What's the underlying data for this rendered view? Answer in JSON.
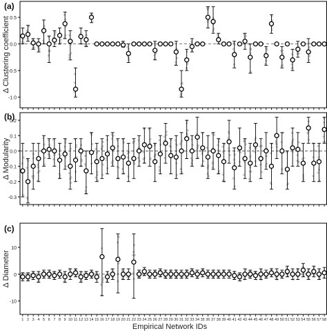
{
  "figure": {
    "xlabel": "Empirical Network IDs",
    "x_ticks": [
      "1",
      "2",
      "3",
      "4",
      "5",
      "6",
      "7",
      "8",
      "9",
      "10",
      "11",
      "12",
      "13",
      "14",
      "15",
      "16",
      "17",
      "18",
      "19",
      "20",
      "21",
      "22",
      "23",
      "24",
      "25",
      "26",
      "27",
      "28",
      "29",
      "30",
      "31",
      "32",
      "33",
      "34",
      "35",
      "36",
      "37",
      "38",
      "39",
      "40",
      "41",
      "42",
      "43",
      "44",
      "45",
      "46",
      "47",
      "48",
      "49",
      "50",
      "51",
      "52",
      "53",
      "54",
      "55",
      "56",
      "57",
      "58"
    ]
  },
  "chart_data": [
    {
      "type": "scatter",
      "panel_label": "(a)",
      "ylabel": "Δ Clustering coefficient",
      "ylim": [
        -1.2,
        0.8
      ],
      "yticks": [
        0.5,
        0.0,
        -0.5,
        -1.0
      ],
      "ytick_labels": [
        "0.5",
        "0.0",
        "-0.5",
        "-1.0"
      ],
      "mean": [
        0.15,
        0.18,
        0.02,
        0.0,
        0.25,
        0.0,
        0.07,
        0.16,
        0.38,
        0.05,
        -0.85,
        0.14,
        0.08,
        0.5,
        0.0,
        0.0,
        0.0,
        0.0,
        0.0,
        -0.02,
        -0.18,
        0.0,
        0.0,
        0.0,
        0.0,
        -0.12,
        0.0,
        0.0,
        0.0,
        -0.15,
        -0.85,
        -0.3,
        -0.05,
        0.0,
        0.0,
        0.5,
        0.42,
        0.08,
        0.0,
        0.0,
        -0.2,
        0.0,
        0.05,
        -0.25,
        0.0,
        0.0,
        -0.22,
        0.38,
        0.0,
        -0.25,
        0.0,
        -0.3,
        -0.1,
        0.0,
        -0.15,
        0.0,
        0.0,
        0.0
      ],
      "lower": [
        0.0,
        0.05,
        -0.1,
        -0.15,
        0.0,
        -0.35,
        -0.05,
        0.0,
        0.1,
        -0.3,
        -1.0,
        0.0,
        -0.05,
        0.4,
        0.0,
        0.0,
        0.0,
        0.0,
        0.0,
        -0.06,
        -0.35,
        0.0,
        0.0,
        0.0,
        0.0,
        -0.3,
        0.0,
        0.0,
        0.0,
        -0.4,
        -1.0,
        -0.5,
        -0.15,
        0.0,
        0.0,
        0.3,
        0.2,
        0.0,
        0.0,
        0.0,
        -0.45,
        0.0,
        -0.1,
        -0.55,
        0.0,
        0.0,
        -0.4,
        0.2,
        0.0,
        -0.45,
        0.0,
        -0.5,
        -0.25,
        0.0,
        -0.35,
        0.0,
        0.0,
        0.0
      ],
      "upper": [
        0.3,
        0.35,
        0.1,
        0.1,
        0.45,
        0.15,
        0.25,
        0.3,
        0.6,
        0.25,
        -0.45,
        0.3,
        0.25,
        0.58,
        0.0,
        0.0,
        0.0,
        0.0,
        0.0,
        0.05,
        0.0,
        0.0,
        0.0,
        0.0,
        0.0,
        0.05,
        0.0,
        0.0,
        0.0,
        0.05,
        -0.5,
        -0.1,
        0.1,
        0.0,
        0.0,
        0.7,
        0.7,
        0.2,
        0.0,
        0.0,
        0.05,
        0.0,
        0.2,
        0.0,
        0.0,
        0.0,
        -0.05,
        0.55,
        0.0,
        -0.05,
        0.0,
        -0.1,
        0.05,
        0.0,
        0.1,
        0.0,
        0.0,
        0.0
      ]
    },
    {
      "type": "scatter",
      "panel_label": "(b)",
      "ylabel": "Δ Modularity",
      "ylim": [
        -0.35,
        0.25
      ],
      "yticks": [
        0.2,
        0.1,
        0.0,
        -0.1,
        -0.2,
        -0.3
      ],
      "ytick_labels": [
        "0.2",
        "0.1",
        "0.0",
        "-0.1",
        "-0.2",
        "-0.3"
      ],
      "mean": [
        -0.13,
        -0.2,
        -0.1,
        -0.05,
        0.0,
        0.01,
        0.0,
        -0.06,
        -0.02,
        -0.1,
        -0.06,
        0.0,
        -0.13,
        -0.01,
        -0.07,
        -0.05,
        -0.02,
        0.02,
        -0.05,
        -0.04,
        -0.08,
        -0.05,
        0.0,
        0.04,
        0.03,
        -0.07,
        -0.02,
        0.05,
        -0.03,
        -0.04,
        0.0,
        0.08,
        0.0,
        0.09,
        0.02,
        -0.04,
        0.0,
        -0.03,
        -0.07,
        0.06,
        -0.11,
        0.02,
        -0.05,
        -0.08,
        0.04,
        -0.05,
        0.0,
        -0.1,
        0.1,
        0.0,
        -0.12,
        0.02,
        0.01,
        -0.08,
        0.15,
        -0.08,
        -0.07,
        0.14
      ],
      "lower": [
        -0.3,
        -0.34,
        -0.25,
        -0.2,
        -0.1,
        -0.05,
        -0.1,
        -0.18,
        -0.12,
        -0.25,
        -0.2,
        -0.1,
        -0.28,
        -0.15,
        -0.2,
        -0.18,
        -0.15,
        -0.1,
        -0.18,
        -0.15,
        -0.2,
        -0.18,
        -0.1,
        -0.08,
        -0.1,
        -0.2,
        -0.15,
        -0.08,
        -0.15,
        -0.18,
        -0.15,
        -0.05,
        -0.1,
        -0.05,
        -0.1,
        -0.18,
        -0.12,
        -0.15,
        -0.2,
        -0.08,
        -0.25,
        -0.1,
        -0.18,
        -0.2,
        -0.1,
        -0.18,
        -0.12,
        -0.25,
        -0.05,
        -0.15,
        -0.25,
        -0.1,
        -0.1,
        -0.2,
        0.05,
        -0.2,
        -0.2,
        0.05
      ],
      "upper": [
        0.05,
        -0.05,
        0.05,
        0.05,
        0.1,
        0.08,
        0.08,
        0.05,
        0.08,
        0.05,
        0.08,
        0.08,
        0.0,
        0.12,
        0.05,
        0.08,
        0.1,
        0.12,
        0.08,
        0.08,
        0.05,
        0.08,
        0.1,
        0.15,
        0.15,
        0.05,
        0.1,
        0.18,
        0.08,
        0.1,
        0.12,
        0.2,
        0.1,
        0.22,
        0.12,
        0.1,
        0.12,
        0.08,
        0.05,
        0.2,
        0.02,
        0.15,
        0.08,
        0.05,
        0.18,
        0.08,
        0.12,
        0.05,
        0.22,
        0.12,
        0.0,
        0.15,
        0.12,
        0.05,
        0.22,
        0.05,
        0.05,
        0.22
      ]
    },
    {
      "type": "scatter",
      "panel_label": "(c)",
      "ylabel": "Δ Diameter",
      "ylim": [
        -15,
        19
      ],
      "yticks": [
        10,
        0,
        -10
      ],
      "ytick_labels": [
        "10",
        "0",
        "-10"
      ],
      "mean": [
        -1,
        -1,
        -0.5,
        -1,
        0,
        0,
        -0.5,
        0,
        -1,
        0,
        0.5,
        -1,
        -0.5,
        0,
        -1,
        6.5,
        -1,
        0,
        5.5,
        0,
        0,
        4.5,
        0,
        1,
        0,
        0,
        0.5,
        0,
        0,
        0,
        0,
        0,
        0.5,
        0,
        0.5,
        0,
        0,
        0,
        0,
        0,
        -0.5,
        -1,
        0,
        0,
        -0.5,
        0,
        0,
        0.5,
        0,
        0,
        1,
        0,
        0,
        1.5,
        0,
        1,
        0,
        0.5
      ],
      "lower": [
        -2.5,
        -2.5,
        -2,
        -3,
        -1.5,
        -1.5,
        -2,
        -1.5,
        -3,
        -2,
        -1,
        -3,
        -2,
        -1.5,
        -3,
        -8,
        -3,
        -2,
        -7,
        -2,
        -2,
        -9,
        -1.5,
        -0.5,
        -1.5,
        -1.5,
        -1,
        -1.5,
        -1.5,
        -1.5,
        -1.5,
        -1.5,
        -1,
        -1.5,
        -1,
        -1.5,
        -1.5,
        -1.5,
        -1.5,
        -1.5,
        -2,
        -2.5,
        -2,
        -1.5,
        -2,
        -2,
        -1.5,
        -1,
        -2,
        -1.5,
        -1,
        -2,
        -2,
        -1,
        -2,
        -1,
        -2,
        -1.5
      ],
      "upper": [
        0.5,
        0.5,
        1,
        1,
        1.5,
        1.5,
        1,
        1.5,
        1,
        2,
        2,
        1,
        1,
        1.5,
        1,
        17,
        1,
        2,
        15,
        2,
        2,
        15,
        1.5,
        2.5,
        1.5,
        1.5,
        2,
        1.5,
        1.5,
        1.5,
        1.5,
        1.5,
        2,
        1.5,
        2,
        1.5,
        1.5,
        1.5,
        1.5,
        1.5,
        1,
        0.5,
        2,
        1.5,
        1,
        2,
        1.5,
        2,
        2,
        1.5,
        3,
        2,
        2,
        4,
        2,
        3,
        2,
        2.5
      ]
    }
  ]
}
